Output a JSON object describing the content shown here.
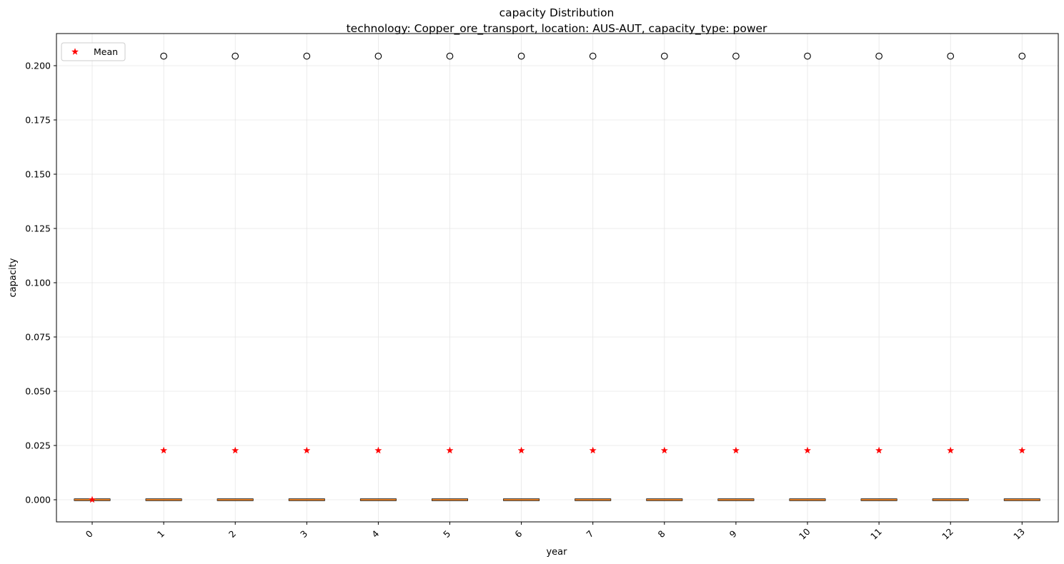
{
  "chart_data": {
    "type": "box",
    "title": "capacity Distribution",
    "subtitle": "technology: Copper_ore_transport, location: AUS-AUT, capacity_type: power",
    "xlabel": "year",
    "ylabel": "capacity",
    "categories": [
      "0",
      "1",
      "2",
      "3",
      "4",
      "5",
      "6",
      "7",
      "8",
      "9",
      "10",
      "11",
      "12",
      "13"
    ],
    "ylim": [
      -0.0102,
      0.2148
    ],
    "yticks": [
      0.0,
      0.025,
      0.05,
      0.075,
      0.1,
      0.125,
      0.15,
      0.175,
      0.2
    ],
    "ytick_labels": [
      "0.000",
      "0.025",
      "0.050",
      "0.075",
      "0.100",
      "0.125",
      "0.150",
      "0.175",
      "0.200"
    ],
    "grid": true,
    "legend": {
      "position": "top-left",
      "entries": [
        {
          "label": "Mean",
          "marker": "red-star"
        }
      ]
    },
    "series": [
      {
        "boxes": [
          {
            "x": "0",
            "min": 0,
            "q1": 0,
            "median": 0,
            "q3": 0,
            "max": 0,
            "mean": 0.0,
            "outliers": []
          },
          {
            "x": "1",
            "min": 0,
            "q1": 0,
            "median": 0,
            "q3": 0,
            "max": 0,
            "mean": 0.0227,
            "outliers": [
              0.2044
            ]
          },
          {
            "x": "2",
            "min": 0,
            "q1": 0,
            "median": 0,
            "q3": 0,
            "max": 0,
            "mean": 0.0227,
            "outliers": [
              0.2044
            ]
          },
          {
            "x": "3",
            "min": 0,
            "q1": 0,
            "median": 0,
            "q3": 0,
            "max": 0,
            "mean": 0.0227,
            "outliers": [
              0.2044
            ]
          },
          {
            "x": "4",
            "min": 0,
            "q1": 0,
            "median": 0,
            "q3": 0,
            "max": 0,
            "mean": 0.0227,
            "outliers": [
              0.2044
            ]
          },
          {
            "x": "5",
            "min": 0,
            "q1": 0,
            "median": 0,
            "q3": 0,
            "max": 0,
            "mean": 0.0227,
            "outliers": [
              0.2044
            ]
          },
          {
            "x": "6",
            "min": 0,
            "q1": 0,
            "median": 0,
            "q3": 0,
            "max": 0,
            "mean": 0.0227,
            "outliers": [
              0.2044
            ]
          },
          {
            "x": "7",
            "min": 0,
            "q1": 0,
            "median": 0,
            "q3": 0,
            "max": 0,
            "mean": 0.0227,
            "outliers": [
              0.2044
            ]
          },
          {
            "x": "8",
            "min": 0,
            "q1": 0,
            "median": 0,
            "q3": 0,
            "max": 0,
            "mean": 0.0227,
            "outliers": [
              0.2044
            ]
          },
          {
            "x": "9",
            "min": 0,
            "q1": 0,
            "median": 0,
            "q3": 0,
            "max": 0,
            "mean": 0.0227,
            "outliers": [
              0.2044
            ]
          },
          {
            "x": "10",
            "min": 0,
            "q1": 0,
            "median": 0,
            "q3": 0,
            "max": 0,
            "mean": 0.0227,
            "outliers": [
              0.2044
            ]
          },
          {
            "x": "11",
            "min": 0,
            "q1": 0,
            "median": 0,
            "q3": 0,
            "max": 0,
            "mean": 0.0227,
            "outliers": [
              0.2044
            ]
          },
          {
            "x": "12",
            "min": 0,
            "q1": 0,
            "median": 0,
            "q3": 0,
            "max": 0,
            "mean": 0.0227,
            "outliers": [
              0.2044
            ]
          },
          {
            "x": "13",
            "min": 0,
            "q1": 0,
            "median": 0,
            "q3": 0,
            "max": 0,
            "mean": 0.0227,
            "outliers": [
              0.2044
            ]
          }
        ]
      }
    ],
    "colors": {
      "box_edge": "#000000",
      "median": "#ff7f0e",
      "mean_marker": "#ff0000",
      "outlier_edge": "#000000",
      "grid": "#e6e6e6",
      "axes": "#000000"
    }
  }
}
